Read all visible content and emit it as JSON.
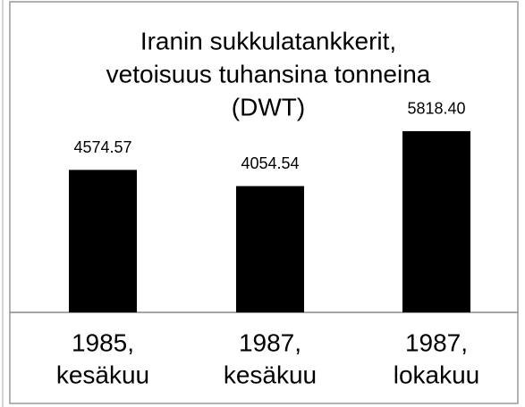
{
  "chart_data": {
    "type": "bar",
    "title": [
      "Iranin sukkulatankkerit,",
      "vetoisuus tuhansina tonneina",
      "(DWT)"
    ],
    "categories": [
      [
        "1985,",
        "kesäkuu"
      ],
      [
        "1987,",
        "kesäkuu"
      ],
      [
        "1987,",
        "lokakuu"
      ]
    ],
    "values": [
      4574.57,
      4054.54,
      5818.4
    ],
    "value_labels": [
      "4574.57",
      "4054.54",
      "5818.40"
    ],
    "color": "#000000",
    "ylim": [
      0,
      10000
    ]
  }
}
